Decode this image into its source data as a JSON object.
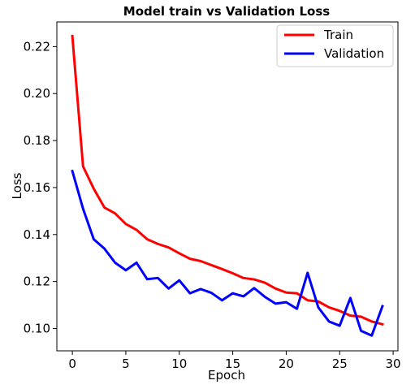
{
  "chart_data": {
    "type": "line",
    "title": "Model train vs Validation Loss",
    "xlabel": "Epoch",
    "ylabel": "Loss",
    "xlim": [
      -1.45,
      30.45
    ],
    "ylim": [
      0.0905,
      0.2305
    ],
    "xticks": [
      0,
      5,
      10,
      15,
      20,
      25,
      30
    ],
    "xtick_labels": [
      "0",
      "5",
      "10",
      "15",
      "20",
      "25",
      "30"
    ],
    "yticks": [
      0.1,
      0.12,
      0.14,
      0.16,
      0.18,
      0.2,
      0.22
    ],
    "ytick_labels": [
      "0.10",
      "0.12",
      "0.14",
      "0.16",
      "0.18",
      "0.20",
      "0.22"
    ],
    "grid": false,
    "legend_position": "upper right",
    "x": [
      0,
      1,
      2,
      3,
      4,
      5,
      6,
      7,
      8,
      9,
      10,
      11,
      12,
      13,
      14,
      15,
      16,
      17,
      18,
      19,
      20,
      21,
      22,
      23,
      24,
      25,
      26,
      27,
      28,
      29
    ],
    "series": [
      {
        "name": "Train",
        "color": "#ff0000",
        "values": [
          0.2245,
          0.169,
          0.1595,
          0.1515,
          0.149,
          0.1445,
          0.142,
          0.138,
          0.136,
          0.1345,
          0.132,
          0.1297,
          0.1287,
          0.127,
          0.1253,
          0.1235,
          0.1215,
          0.1209,
          0.1195,
          0.117,
          0.1153,
          0.115,
          0.112,
          0.1115,
          0.109,
          0.1075,
          0.1055,
          0.105,
          0.103,
          0.1018
        ]
      },
      {
        "name": "Validation",
        "color": "#0000ff",
        "values": [
          0.167,
          0.151,
          0.138,
          0.134,
          0.128,
          0.1248,
          0.128,
          0.121,
          0.1215,
          0.117,
          0.1205,
          0.115,
          0.1168,
          0.1152,
          0.112,
          0.115,
          0.1137,
          0.1172,
          0.1135,
          0.1106,
          0.1112,
          0.1084,
          0.1237,
          0.109,
          0.103,
          0.1012,
          0.113,
          0.099,
          0.097,
          0.1095
        ]
      }
    ]
  }
}
